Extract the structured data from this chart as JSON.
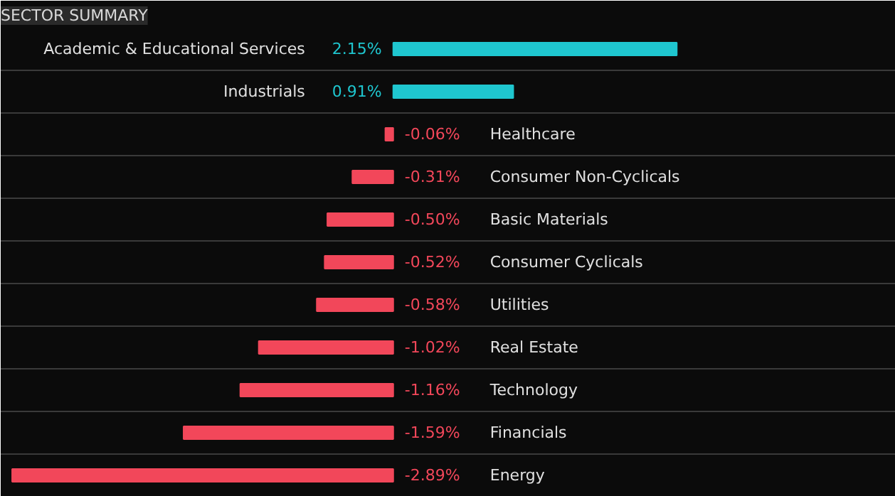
{
  "chart_data": {
    "type": "bar",
    "orientation": "horizontal",
    "title": "SECTOR SUMMARY",
    "categories": [
      "Academic & Educational Services",
      "Industrials",
      "Healthcare",
      "Consumer Non-Cyclicals",
      "Basic Materials",
      "Consumer Cyclicals",
      "Utilities",
      "Real Estate",
      "Technology",
      "Financials",
      "Energy"
    ],
    "values": [
      2.15,
      0.91,
      -0.06,
      -0.31,
      -0.5,
      -0.52,
      -0.58,
      -1.02,
      -1.16,
      -1.59,
      -2.89
    ],
    "colors": [
      "#1fc6cf",
      "#1fc6cf",
      "#f2475a",
      "#f2475a",
      "#f2475a",
      "#f2475a",
      "#f2475a",
      "#f2475a",
      "#f2475a",
      "#f2475a",
      "#f2475a"
    ],
    "value_labels": [
      "2.15%",
      "0.91%",
      "-0.06%",
      "-0.31%",
      "-0.50%",
      "-0.52%",
      "-0.58%",
      "-1.02%",
      "-1.16%",
      "-1.59%",
      "-2.89%"
    ],
    "grid": "y"
  }
}
